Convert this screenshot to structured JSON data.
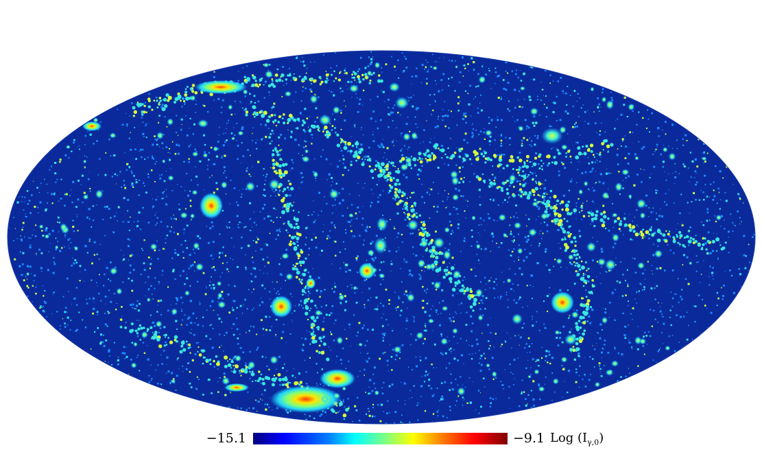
{
  "colorbar": {
    "min_label": "−15.1",
    "max_label": "−9.1",
    "quantity_label": "Log (I",
    "quantity_subscript": "γ,0",
    "quantity_close": ")",
    "colormap": "jet"
  },
  "map": {
    "projection": "Mollweide full-sky map",
    "background_color": "#0a2a9c",
    "source_color_low": "#27b6ff",
    "source_color_mid": "#d8ff3a",
    "source_color_high": "#ff5a00"
  }
}
